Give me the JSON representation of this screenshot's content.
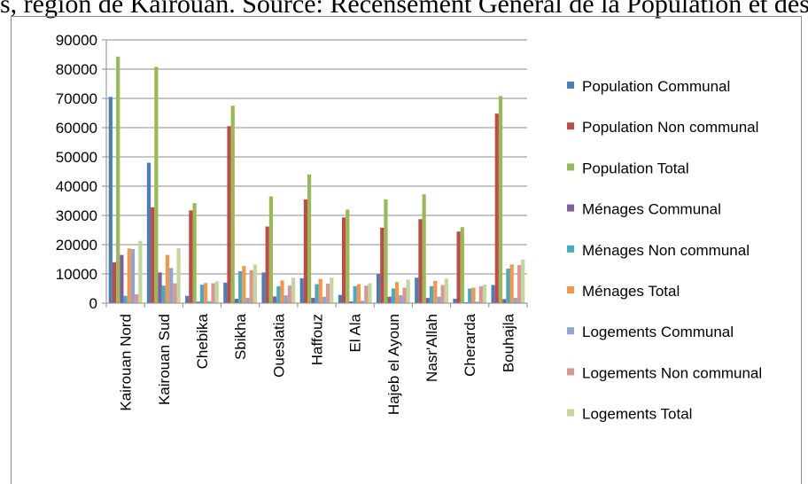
{
  "page": {
    "top_text": "s, région de Kairouan. Source: Recensement Général de la Population et des Logements"
  },
  "chart_data": {
    "type": "bar",
    "title": "",
    "xlabel": "",
    "ylabel": "",
    "ylim": [
      0,
      90000
    ],
    "yticks": [
      0,
      10000,
      20000,
      30000,
      40000,
      50000,
      60000,
      70000,
      80000,
      90000
    ],
    "grid": true,
    "legend_position": "right",
    "categories": [
      "Kairouan Nord",
      "Kairouan Sud",
      "Chebika",
      "Sbikha",
      "Oueslatia",
      "Haffouz",
      "El Ala",
      "Hajeb el Ayoun",
      "Nasr'Allah",
      "Cherarda",
      "Bouhajla"
    ],
    "series": [
      {
        "name": "Population Communal",
        "color": "#4a7ebb",
        "values": [
          70500,
          48000,
          2500,
          7000,
          10500,
          8500,
          2800,
          10000,
          8700,
          1500,
          6200
        ]
      },
      {
        "name": "Population Non communal",
        "color": "#be4b48",
        "values": [
          14000,
          32800,
          31700,
          60500,
          26200,
          35500,
          29300,
          25800,
          28700,
          24500,
          64800
        ]
      },
      {
        "name": "Population Total",
        "color": "#98b954",
        "values": [
          84300,
          80800,
          34200,
          67500,
          36500,
          44000,
          32000,
          35500,
          37200,
          26000,
          70800
        ]
      },
      {
        "name": "Ménages Communal",
        "color": "#7d60a0",
        "values": [
          16500,
          10500,
          500,
          1500,
          2300,
          1800,
          600,
          2200,
          1800,
          300,
          1400
        ]
      },
      {
        "name": "Ménages Non communal",
        "color": "#46aac5",
        "values": [
          2500,
          6000,
          6300,
          10900,
          5800,
          6500,
          5800,
          5000,
          5800,
          5000,
          11800
        ]
      },
      {
        "name": "Ménages Total",
        "color": "#f79646",
        "values": [
          18700,
          16500,
          6900,
          12700,
          7800,
          8300,
          6500,
          7200,
          7600,
          5300,
          13200
        ]
      },
      {
        "name": "Logements Communal",
        "color": "#8ea5d1",
        "values": [
          18500,
          12000,
          700,
          1800,
          2700,
          2200,
          800,
          2700,
          2200,
          500,
          1800
        ]
      },
      {
        "name": "Logements Non communal",
        "color": "#d99694",
        "values": [
          3000,
          6800,
          6800,
          11300,
          6000,
          6700,
          6000,
          5300,
          6200,
          5800,
          13000
        ]
      },
      {
        "name": "Logements Total",
        "color": "#c3d69b",
        "values": [
          21300,
          18800,
          7500,
          13200,
          8700,
          8700,
          6800,
          8000,
          8400,
          6300,
          14900
        ]
      }
    ]
  }
}
